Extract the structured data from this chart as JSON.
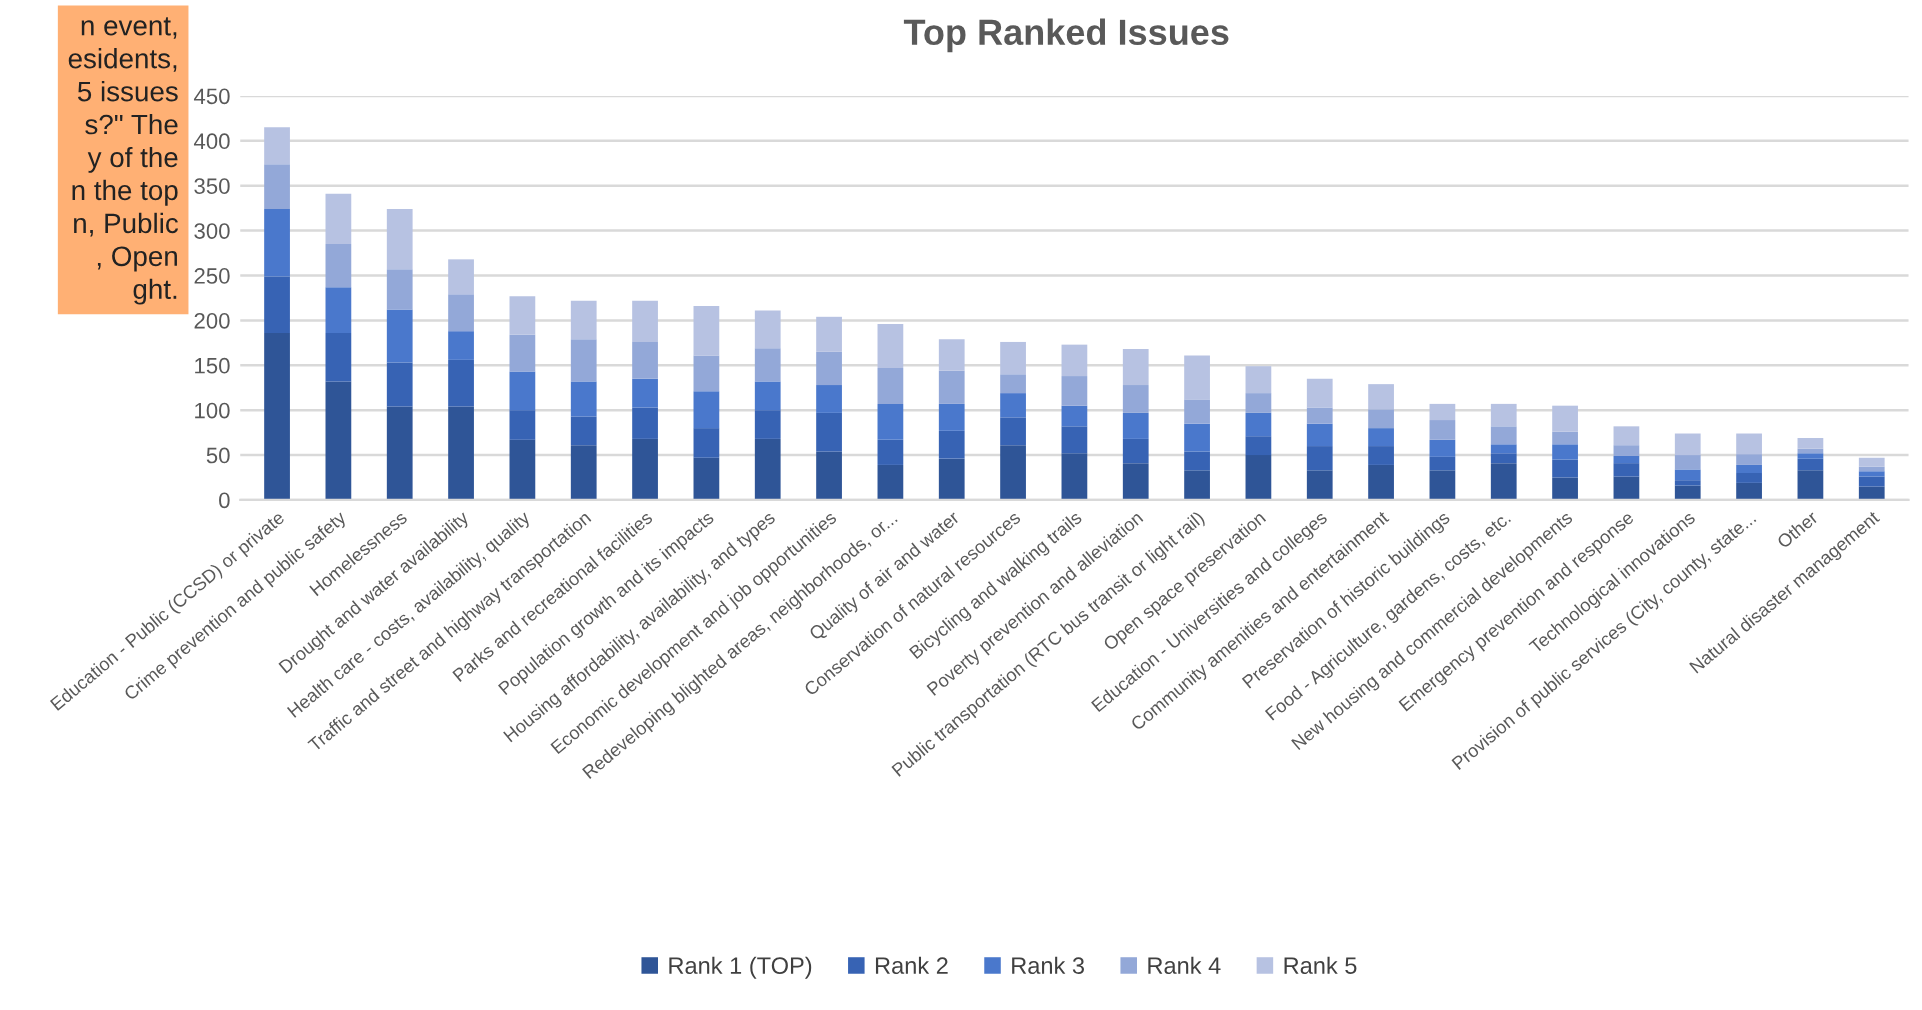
{
  "chart_data": {
    "type": "bar",
    "stacked": true,
    "title": "Top Ranked Issues",
    "categories": [
      "Education - Public (CCSD) or private",
      "Crime prevention and public safety",
      "Homelessness",
      "Drought and water availability",
      "Health care - costs, availability, quality",
      "Traffic and street and highway transportation",
      "Parks and recreational facilities",
      "Population growth and its impacts",
      "Housing affordability, availability, and types",
      "Economic development and job opportunities",
      "Redeveloping blighted areas, neighborhoods, or...",
      "Quality of air and water",
      "Conservation of natural resources",
      "Bicycling and walking trails",
      "Poverty prevention and alleviation",
      "Public transportation (RTC bus transit or light rail)",
      "Open space preservation",
      "Education - Universities and colleges",
      "Community amenities and entertainment",
      "Preservation of historic buildings",
      "Food - Agriculture, gardens, costs, etc.",
      "New housing and commercial developments",
      "Emergency prevention and response",
      "Technological innovations",
      "Provision of public services (City, county, state...",
      "Other",
      "Natural disaster management"
    ],
    "series": [
      {
        "name": "Rank 1 (TOP)",
        "color": "#2f5597",
        "values": [
          186,
          132,
          104,
          104,
          67,
          61,
          68,
          47,
          68,
          54,
          39,
          46,
          61,
          52,
          41,
          33,
          50,
          33,
          39,
          33,
          41,
          25,
          26,
          16,
          19,
          33,
          15
        ]
      },
      {
        "name": "Rank 2",
        "color": "#3763b4",
        "values": [
          63,
          54,
          49,
          52,
          33,
          32,
          35,
          33,
          32,
          43,
          28,
          31,
          31,
          30,
          27,
          21,
          21,
          27,
          21,
          15,
          11,
          20,
          15,
          6,
          11,
          13,
          11
        ]
      },
      {
        "name": "Rank 3",
        "color": "#4a78cc",
        "values": [
          75,
          51,
          59,
          32,
          43,
          39,
          32,
          41,
          32,
          31,
          40,
          30,
          27,
          23,
          29,
          31,
          26,
          25,
          20,
          19,
          10,
          17,
          8,
          12,
          9,
          6,
          6
        ]
      },
      {
        "name": "Rank 4",
        "color": "#93a8d8",
        "values": [
          50,
          48,
          45,
          41,
          41,
          47,
          41,
          40,
          37,
          37,
          40,
          37,
          21,
          33,
          31,
          27,
          22,
          18,
          21,
          22,
          20,
          14,
          12,
          16,
          12,
          5,
          5
        ]
      },
      {
        "name": "Rank 5",
        "color": "#b7c2e2",
        "values": [
          41,
          56,
          67,
          39,
          43,
          43,
          46,
          55,
          42,
          39,
          49,
          35,
          36,
          35,
          40,
          49,
          30,
          32,
          28,
          18,
          25,
          29,
          21,
          24,
          23,
          12,
          10
        ]
      }
    ],
    "ylim": [
      0,
      450
    ],
    "yticks": [
      0,
      50,
      100,
      150,
      200,
      250,
      300,
      350,
      400,
      450
    ],
    "grid": "y",
    "legend": "bottom",
    "annotations": [
      "n event,\nesidents,\n5 issues\ns?\" The\ny of the\nn the top\nn, Public\n, Open\nght."
    ]
  }
}
